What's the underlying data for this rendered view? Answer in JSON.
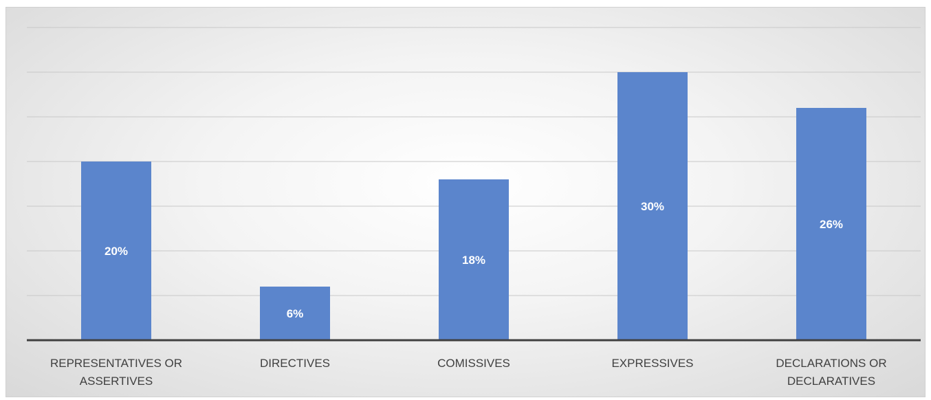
{
  "chart_data": {
    "type": "bar",
    "categories": [
      "REPRESENTATIVES OR ASSERTIVES",
      "DIRECTIVES",
      "COMISSIVES",
      "EXPRESSIVES",
      "DECLARATIONS OR DECLARATIVES"
    ],
    "values": [
      20,
      6,
      18,
      30,
      26
    ],
    "value_labels": [
      "20%",
      "6%",
      "18%",
      "30%",
      "26%"
    ],
    "ylim": [
      0,
      35
    ],
    "grid": true,
    "legend": "none",
    "colors": {
      "bar": "#5b85cc",
      "label": "#ffffff",
      "grid": "#c8c8c8",
      "axis": "#404040"
    }
  }
}
